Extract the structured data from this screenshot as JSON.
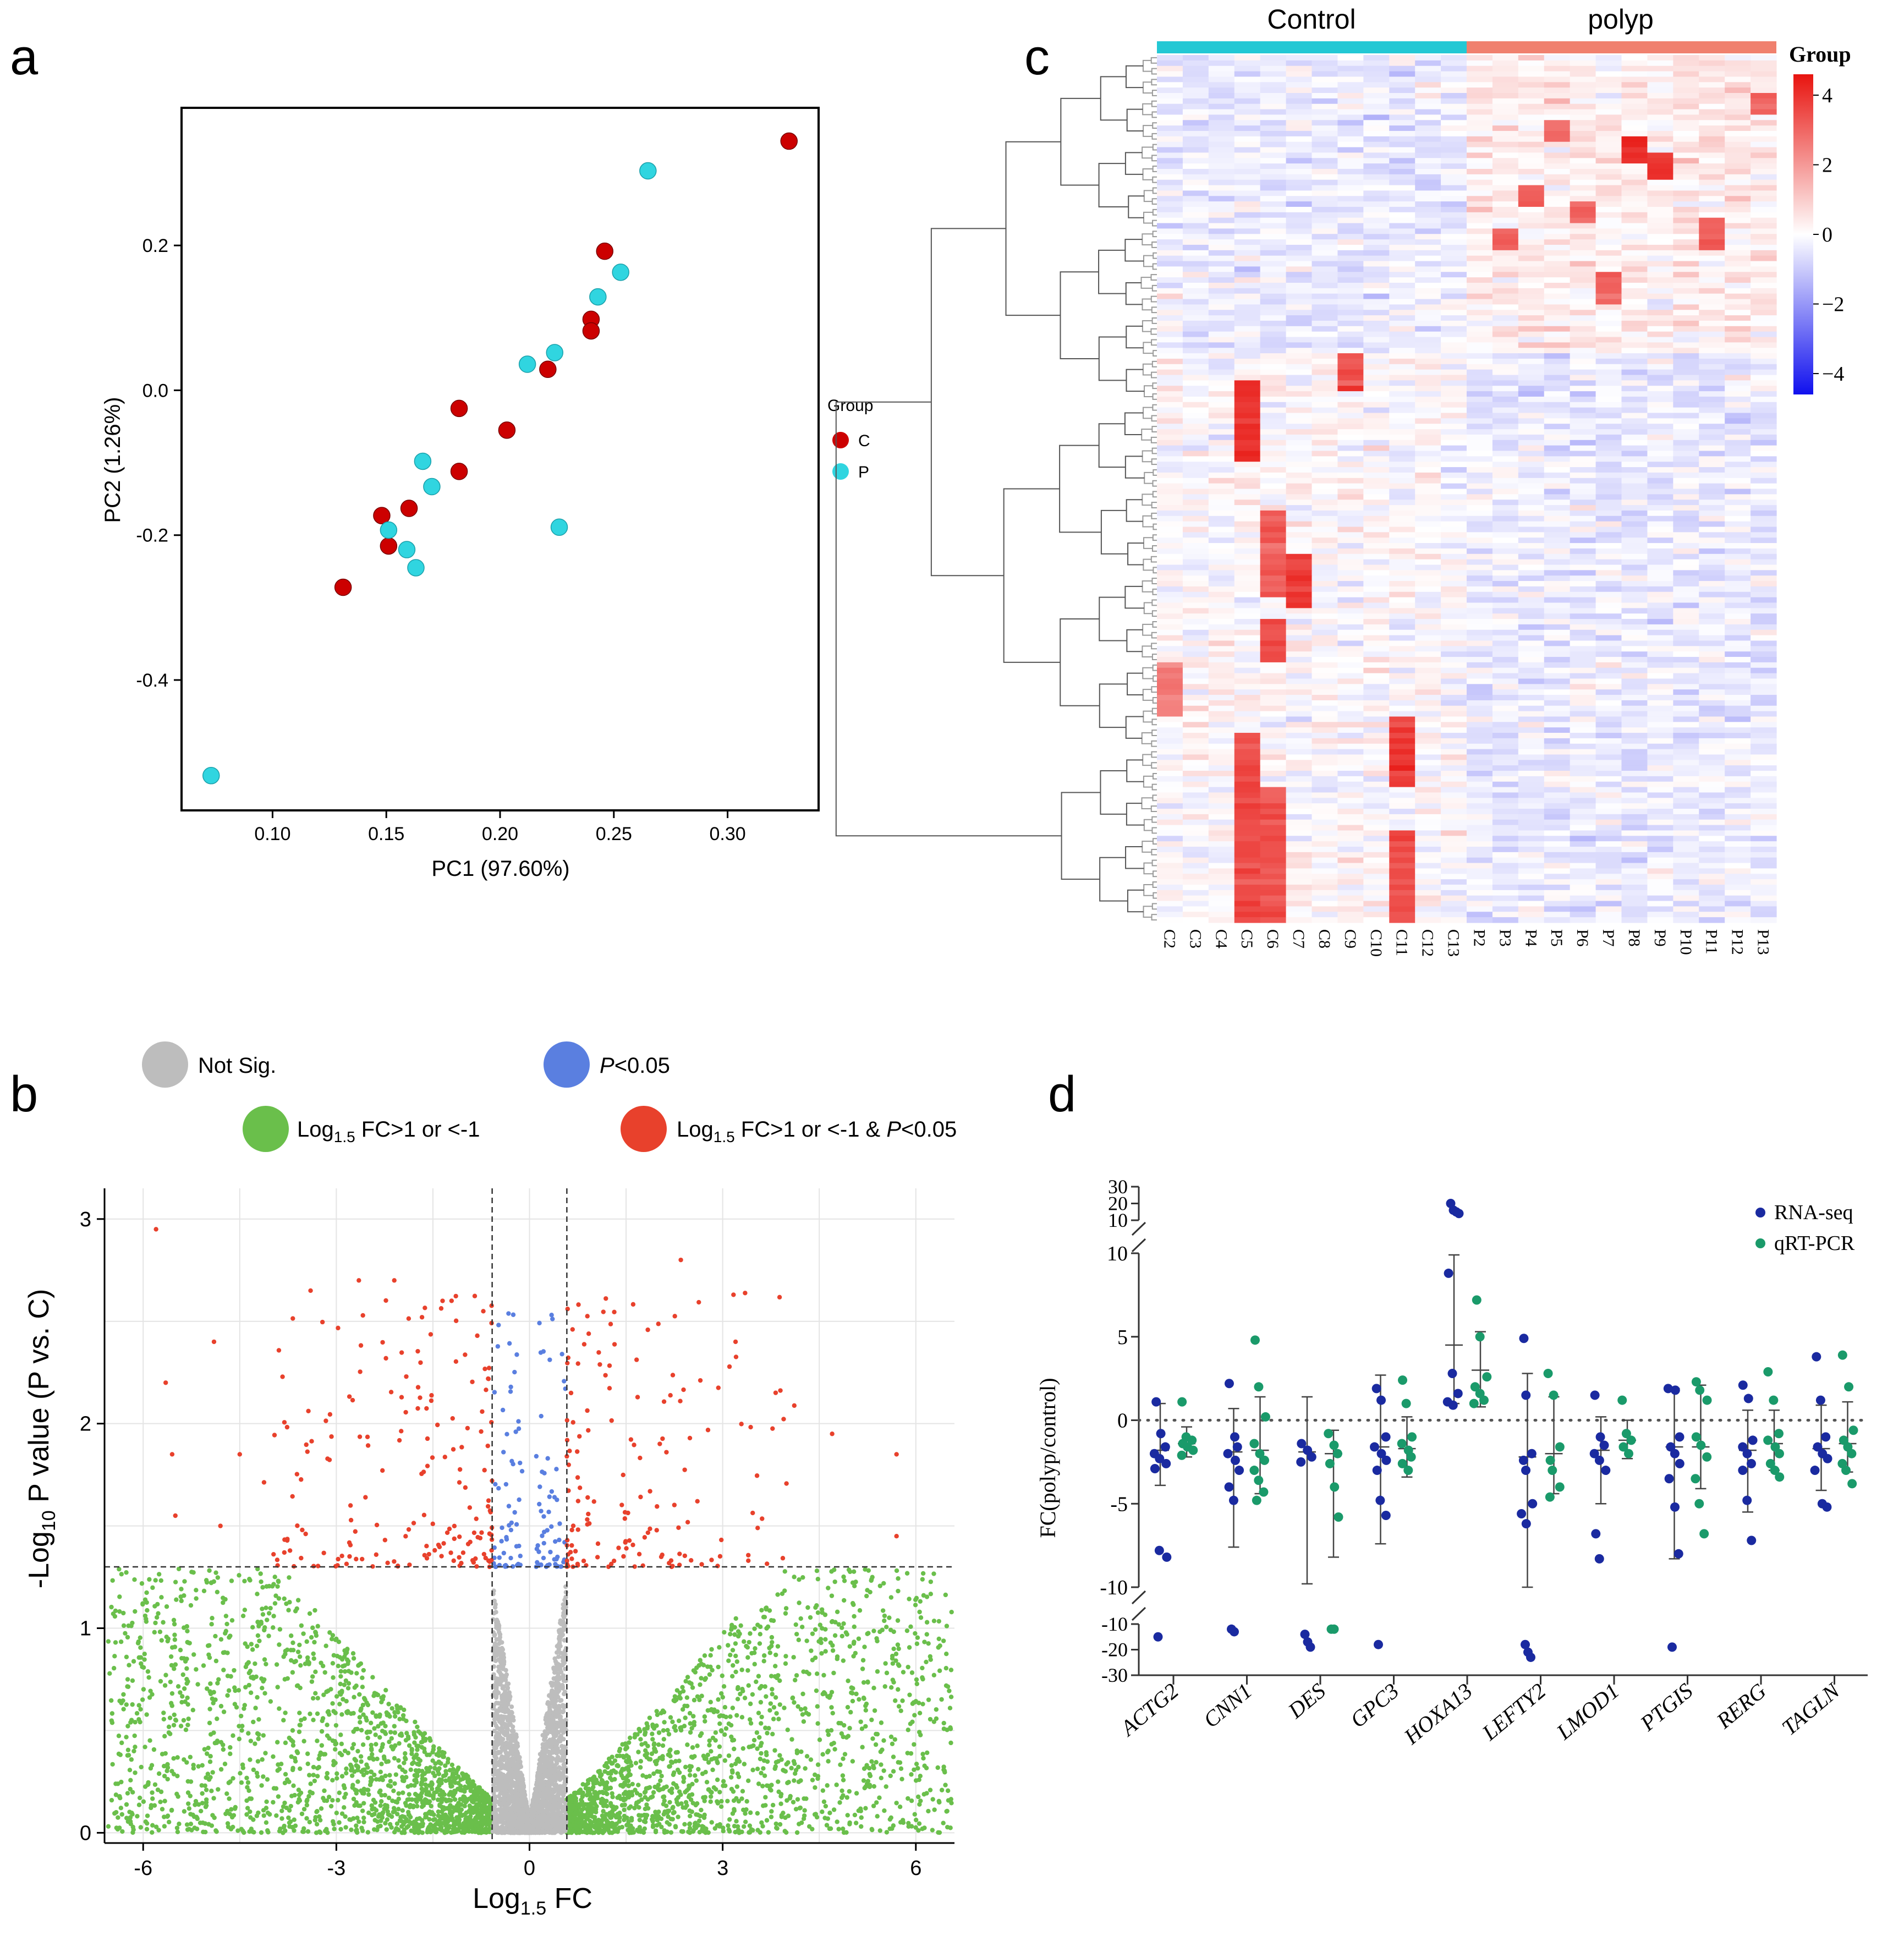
{
  "panel_labels": {
    "a": "a",
    "b": "b",
    "c": "c",
    "d": "d"
  },
  "colors": {
    "control_red": "#cc0000",
    "polyp_cyan": "#30d5e0",
    "not_sig": "#bdbdbd",
    "p_sig": "#5a7fe0",
    "fc_sig": "#6abf4b",
    "both_sig": "#e8412c",
    "rna_seq": "#1a2aa0",
    "qrt_pcr": "#1a9a6a",
    "heat_high": "#e8140f",
    "heat_low": "#1010ee",
    "control_bar": "#23c8d4",
    "polyp_bar": "#f0806e"
  },
  "chart_data": [
    {
      "id": "a",
      "type": "scatter",
      "title": "",
      "xlabel": "PC1 (97.60%)",
      "ylabel": "PC2 (1.26%)",
      "xlim": [
        0.06,
        0.34
      ],
      "ylim": [
        -0.58,
        0.39
      ],
      "xticks": [
        "0.10",
        "0.15",
        "0.20",
        "0.25",
        "0.30"
      ],
      "yticks": [
        "-0.4",
        "-0.2",
        "0.0",
        "0.2"
      ],
      "legend_title": "Group",
      "series": [
        {
          "name": "C",
          "points": [
            [
              0.327,
              0.344
            ],
            [
              0.246,
              0.192
            ],
            [
              0.24,
              0.098
            ],
            [
              0.24,
              0.082
            ],
            [
              0.221,
              0.029
            ],
            [
              0.182,
              -0.025
            ],
            [
              0.203,
              -0.055
            ],
            [
              0.182,
              -0.112
            ],
            [
              0.16,
              -0.163
            ],
            [
              0.148,
              -0.173
            ],
            [
              0.151,
              -0.215
            ],
            [
              0.131,
              -0.272
            ]
          ]
        },
        {
          "name": "P",
          "points": [
            [
              0.265,
              0.303
            ],
            [
              0.253,
              0.163
            ],
            [
              0.243,
              0.129
            ],
            [
              0.224,
              0.052
            ],
            [
              0.212,
              0.036
            ],
            [
              0.166,
              -0.098
            ],
            [
              0.17,
              -0.133
            ],
            [
              0.226,
              -0.189
            ],
            [
              0.151,
              -0.193
            ],
            [
              0.159,
              -0.22
            ],
            [
              0.163,
              -0.245
            ],
            [
              0.073,
              -0.532
            ]
          ]
        }
      ]
    },
    {
      "id": "b",
      "type": "scatter",
      "title": "",
      "xlabel_main": "Log",
      "xlabel_sub": "1.5",
      "xlabel_end": " FC",
      "ylabel_main": "-Log",
      "ylabel_sub": "10",
      "ylabel_end": " P value (P vs. C)",
      "xlim": [
        -6.6,
        6.6
      ],
      "ylim": [
        -0.05,
        3.15
      ],
      "xticks": [
        "-6",
        "-3",
        "0",
        "3",
        "6"
      ],
      "yticks": [
        "0",
        "1",
        "2",
        "3"
      ],
      "thresholds": {
        "fc": [
          -0.58,
          0.58
        ],
        "p": 1.3
      },
      "legend": [
        {
          "label": "Not Sig."
        },
        {
          "label": "P<0.05",
          "italic_part": "P",
          "rest": "<0.05"
        },
        {
          "label_main": "Log",
          "label_sub": "1.5",
          "label_end": " FC>1 or <-1"
        },
        {
          "label_main": "Log",
          "label_sub": "1.5",
          "label_end": " FC>1 or <-1 & ",
          "label_italic": "P",
          "label_tail": "<0.05"
        }
      ],
      "series": [
        {
          "name": "Not Sig.",
          "n_points": 2500
        },
        {
          "name": "P<0.05",
          "n_points": 110
        },
        {
          "name": "Log1.5 FC>1 or <-1",
          "n_points": 3600
        },
        {
          "name": "Log1.5 FC>1 or <-1 & P<0.05",
          "n_points": 330,
          "highlight_points": [
            [
              -5.8,
              2.95
            ],
            [
              -5.65,
              2.2
            ],
            [
              -5.55,
              1.85
            ],
            [
              -5.5,
              1.55
            ],
            [
              -4.9,
              2.4
            ],
            [
              -4.8,
              1.5
            ],
            [
              -4.5,
              1.85
            ],
            [
              -3.4,
              2.65
            ],
            [
              -2.65,
              2.7
            ],
            [
              -2.1,
              2.7
            ],
            [
              -1.35,
              2.6
            ],
            [
              2.35,
              2.8
            ],
            [
              3.2,
              2.4
            ],
            [
              4.7,
              1.95
            ],
            [
              5.7,
              1.85
            ],
            [
              5.7,
              1.45
            ]
          ]
        }
      ]
    },
    {
      "id": "c",
      "type": "heatmap",
      "group_labels": [
        "Control",
        "polyp"
      ],
      "columns": [
        "C2",
        "C3",
        "C4",
        "C5",
        "C6",
        "C7",
        "C8",
        "C9",
        "C10",
        "C11",
        "C12",
        "C13",
        "P2",
        "P3",
        "P4",
        "P5",
        "P6",
        "P7",
        "P8",
        "P9",
        "P10",
        "P11",
        "P12",
        "P13"
      ],
      "n_rows": 160,
      "legend_title": "Group",
      "colorbar_range": [
        -4.6,
        4.6
      ],
      "colorbar_ticks": [
        "4",
        "2",
        "0",
        "−2",
        "−4"
      ],
      "hot_blocks": [
        {
          "col": "C5",
          "rows": [
            60,
            75
          ],
          "value": 4
        },
        {
          "col": "C5",
          "rows": [
            125,
            160
          ],
          "value": 3.5
        },
        {
          "col": "C6",
          "rows": [
            84,
            100
          ],
          "value": 3.2
        },
        {
          "col": "C6",
          "rows": [
            104,
            112
          ],
          "value": 3.6
        },
        {
          "col": "C6",
          "rows": [
            135,
            160
          ],
          "value": 3.3
        },
        {
          "col": "C7",
          "rows": [
            92,
            102
          ],
          "value": 3.8
        },
        {
          "col": "C9",
          "rows": [
            55,
            62
          ],
          "value": 3.5
        },
        {
          "col": "C11",
          "rows": [
            122,
            135
          ],
          "value": 3.8
        },
        {
          "col": "C11",
          "rows": [
            143,
            160
          ],
          "value": 3.5
        },
        {
          "col": "C2",
          "rows": [
            112,
            122
          ],
          "value": 2.5
        },
        {
          "col": "P3",
          "rows": [
            32,
            36
          ],
          "value": 3
        },
        {
          "col": "P5",
          "rows": [
            12,
            16
          ],
          "value": 3
        },
        {
          "col": "P8",
          "rows": [
            15,
            20
          ],
          "value": 4
        },
        {
          "col": "P9",
          "rows": [
            18,
            23
          ],
          "value": 4
        },
        {
          "col": "P4",
          "rows": [
            24,
            28
          ],
          "value": 3
        },
        {
          "col": "P6",
          "rows": [
            27,
            31
          ],
          "value": 3
        },
        {
          "col": "P7",
          "rows": [
            40,
            46
          ],
          "value": 3
        },
        {
          "col": "P11",
          "rows": [
            30,
            36
          ],
          "value": 3.3
        },
        {
          "col": "P13",
          "rows": [
            7,
            11
          ],
          "value": 3
        }
      ]
    },
    {
      "id": "d",
      "type": "scatter",
      "title": "",
      "ylabel": "FC(polyp/control)",
      "categories": [
        "ACTG2",
        "CNN1",
        "DES",
        "GPC3",
        "HOXA13",
        "LEFTY2",
        "LMOD1",
        "PTGIS",
        "RERG",
        "TAGLN"
      ],
      "y_main_range": [
        -10,
        10
      ],
      "y_main_ticks": [
        "10",
        "5",
        "0",
        "-5",
        "-10"
      ],
      "y_top_ticks": [
        "30",
        "20",
        "10"
      ],
      "y_bottom_ticks": [
        "-10",
        "-20",
        "-30"
      ],
      "legend": [
        "RNA-seq",
        "qRT-PCR"
      ],
      "series": [
        {
          "name": "RNA-seq",
          "groups": [
            {
              "values": [
                1.1,
                -0.8,
                -1.6,
                -2.0,
                -2.3,
                -2.6,
                -2.9,
                -7.8,
                -8.2
              ],
              "mean": -1.8,
              "sd_low": -3.9,
              "sd_high": 1.0,
              "low_break": [
                -15
              ]
            },
            {
              "values": [
                2.2,
                -1.0,
                -1.6,
                -2.0,
                -2.4,
                -3.0,
                -4.0,
                -4.8
              ],
              "mean": -1.9,
              "sd_low": -7.6,
              "sd_high": 0.7,
              "low_break": [
                -12,
                -13
              ]
            },
            {
              "values": [
                -1.4,
                -1.8,
                -2.2,
                -2.5
              ],
              "mean": -1.9,
              "sd_low": -9.8,
              "sd_high": 1.4,
              "low_break": [
                -14,
                -17,
                -19
              ]
            },
            {
              "values": [
                1.9,
                1.2,
                -1.0,
                -1.6,
                -2.0,
                -2.4,
                -3.0,
                -4.8,
                -5.7
              ],
              "mean": -1.6,
              "sd_low": -7.4,
              "sd_high": 2.7,
              "low_break": [
                -18
              ]
            },
            {
              "values": [
                8.8,
                2.8,
                1.6,
                1.1,
                0.9
              ],
              "mean": 4.5,
              "sd_low": 1.0,
              "sd_high": 9.9,
              "high_break": [
                20,
                16,
                15,
                14
              ]
            },
            {
              "values": [
                4.9,
                1.5,
                -2.0,
                -2.4,
                -3.0,
                -5.0,
                -5.6,
                -6.2
              ],
              "mean": -2.2,
              "sd_low": -10.0,
              "sd_high": 2.8,
              "low_break": [
                -18,
                -21,
                -23
              ]
            },
            {
              "values": [
                1.5,
                -1.0,
                -1.5,
                -2.0,
                -2.4,
                -3.0,
                -6.8,
                -8.3
              ],
              "mean": -1.8,
              "sd_low": -5.0,
              "sd_high": 0.2
            },
            {
              "values": [
                1.9,
                1.8,
                -1.0,
                -1.6,
                -2.0,
                -2.6,
                -3.5,
                -5.2,
                -8.0
              ],
              "mean": -1.6,
              "sd_low": -8.3,
              "sd_high": 1.9,
              "low_break": [
                -19
              ]
            },
            {
              "values": [
                2.1,
                1.3,
                -1.2,
                -1.6,
                -2.0,
                -2.6,
                -3.0,
                -4.8,
                -7.2
              ],
              "mean": -1.8,
              "sd_low": -5.5,
              "sd_high": 0.6
            },
            {
              "values": [
                3.8,
                1.2,
                -1.0,
                -1.6,
                -2.0,
                -2.3,
                -3.0,
                -5.0,
                -5.2
              ],
              "mean": -1.7,
              "sd_low": -4.2,
              "sd_high": 0.9
            }
          ]
        },
        {
          "name": "qRT-PCR",
          "groups": [
            {
              "values": [
                1.1,
                -1.0,
                -1.2,
                -1.4,
                -1.6,
                -1.8,
                -2.1
              ],
              "mean": -1.4,
              "sd_low": -2.2,
              "sd_high": -0.4
            },
            {
              "values": [
                4.8,
                2.0,
                0.2,
                -1.4,
                -2.0,
                -2.4,
                -3.0,
                -3.6,
                -4.3,
                -4.8
              ],
              "mean": -1.8,
              "sd_low": -4.4,
              "sd_high": 1.4
            },
            {
              "values": [
                -0.8,
                -1.5,
                -2.0,
                -2.6,
                -4.0,
                -5.8
              ],
              "mean": -2.0,
              "sd_low": -8.2,
              "sd_high": -0.6,
              "low_break": [
                -12,
                -12
              ]
            },
            {
              "values": [
                2.4,
                1.0,
                -1.0,
                -1.4,
                -1.8,
                -2.2,
                -2.6,
                -3.0
              ],
              "mean": -1.7,
              "sd_low": -3.4,
              "sd_high": 0.2
            },
            {
              "values": [
                7.2,
                5.0,
                2.6,
                2.0,
                1.6,
                1.2,
                1.0
              ],
              "mean": 3.0,
              "sd_low": 0.8,
              "sd_high": 5.3
            },
            {
              "values": [
                2.8,
                1.5,
                -1.6,
                -2.4,
                -3.0,
                -4.0,
                -4.6
              ],
              "mean": -2.0,
              "sd_low": -4.4,
              "sd_high": 1.4
            },
            {
              "values": [
                1.2,
                -0.8,
                -1.2,
                -1.6,
                -2.0
              ],
              "mean": -1.2,
              "sd_low": -2.3,
              "sd_high": 0.0
            },
            {
              "values": [
                2.3,
                1.8,
                1.2,
                -1.0,
                -1.5,
                -2.2,
                -3.5,
                -5.0,
                -6.8
              ],
              "mean": -1.6,
              "sd_low": -4.1,
              "sd_high": 2.1
            },
            {
              "values": [
                2.9,
                1.2,
                -0.8,
                -1.2,
                -1.6,
                -2.0,
                -2.6,
                -3.0,
                -3.4
              ],
              "mean": -1.4,
              "sd_low": -3.0,
              "sd_high": 0.6
            },
            {
              "values": [
                3.9,
                2.0,
                -0.6,
                -1.2,
                -1.6,
                -2.0,
                -2.6,
                -3.0,
                -3.8
              ],
              "mean": -1.4,
              "sd_low": -3.1,
              "sd_high": 1.1
            }
          ]
        }
      ]
    }
  ]
}
